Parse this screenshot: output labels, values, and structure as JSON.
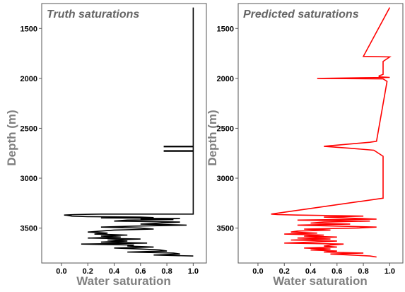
{
  "chart_data": [
    {
      "type": "line",
      "title": "Truth saturations",
      "xlabel": "Water saturation",
      "ylabel": "Depth (m)",
      "xlim": [
        -0.15,
        1.1
      ],
      "ylim": [
        3850,
        1250
      ],
      "y_inverted": true,
      "xticks": [
        "0.0",
        "0.2",
        "0.4",
        "0.6",
        "0.8",
        "1.0"
      ],
      "yticks": [
        "1500",
        "2000",
        "2500",
        "3000",
        "3500"
      ],
      "line_color": "#000000",
      "series": [
        {
          "depth": [
            1290,
            2680,
            2680,
            2685,
            2685,
            2725,
            2725,
            2730,
            2730,
            3360,
            3360,
            3365,
            3370,
            3372,
            3380,
            3385,
            3390,
            3395,
            3398,
            3400,
            3405,
            3410,
            3415,
            3420,
            3430,
            3440,
            3450,
            3460,
            3470,
            3480,
            3490,
            3500,
            3510,
            3520,
            3530,
            3540,
            3550,
            3560,
            3570,
            3580,
            3590,
            3600,
            3610,
            3620,
            3630,
            3640,
            3650,
            3660,
            3670,
            3680,
            3690,
            3700,
            3710,
            3720,
            3730,
            3740,
            3750,
            3760,
            3770,
            3780
          ],
          "saturation": [
            1.0,
            1.0,
            0.78,
            0.78,
            1.0,
            1.0,
            0.78,
            0.78,
            1.0,
            1.0,
            0.3,
            0.1,
            0.02,
            0.04,
            0.08,
            0.2,
            0.6,
            0.7,
            0.3,
            0.55,
            0.9,
            0.6,
            0.85,
            0.5,
            0.4,
            0.9,
            0.75,
            0.6,
            0.95,
            0.55,
            0.3,
            0.6,
            0.7,
            0.4,
            0.3,
            0.2,
            0.35,
            0.25,
            0.5,
            0.3,
            0.45,
            0.2,
            0.6,
            0.35,
            0.5,
            0.3,
            0.65,
            0.15,
            0.55,
            0.5,
            0.7,
            0.4,
            0.6,
            0.75,
            0.8,
            0.5,
            0.85,
            0.9,
            0.7,
            1.0
          ]
        }
      ]
    },
    {
      "type": "line",
      "title": "Predicted saturations",
      "xlabel": "Water saturation",
      "ylabel": "Depth (m)",
      "xlim": [
        -0.15,
        1.1
      ],
      "ylim": [
        3850,
        1250
      ],
      "y_inverted": true,
      "xticks": [
        "0.0",
        "0.2",
        "0.4",
        "0.6",
        "0.8",
        "1.0"
      ],
      "yticks": [
        "1500",
        "2000",
        "2500",
        "3000",
        "3500"
      ],
      "line_color": "#ff0000",
      "series": [
        {
          "depth": [
            1290,
            1780,
            1785,
            1830,
            1860,
            1920,
            1960,
            1975,
            1985,
            1990,
            2000,
            2005,
            2030,
            2630,
            2640,
            2680,
            2700,
            2720,
            2780,
            3020,
            3100,
            3200,
            3360,
            3365,
            3370,
            3375,
            3380,
            3390,
            3400,
            3410,
            3420,
            3430,
            3440,
            3450,
            3460,
            3470,
            3480,
            3490,
            3500,
            3510,
            3520,
            3530,
            3540,
            3550,
            3560,
            3570,
            3580,
            3590,
            3600,
            3610,
            3620,
            3630,
            3640,
            3650,
            3660,
            3670,
            3680,
            3690,
            3700,
            3710,
            3720,
            3730,
            3740,
            3750,
            3760,
            3770,
            3780,
            3790
          ],
          "saturation": [
            1.0,
            0.8,
            1.0,
            0.95,
            0.95,
            0.95,
            0.95,
            0.92,
            0.92,
            1.0,
            0.45,
            0.95,
            0.98,
            0.9,
            0.85,
            0.5,
            0.7,
            0.88,
            0.95,
            0.95,
            0.95,
            0.95,
            0.1,
            0.15,
            0.3,
            0.6,
            0.8,
            0.5,
            0.7,
            0.9,
            0.3,
            0.85,
            0.5,
            0.4,
            0.7,
            0.3,
            0.6,
            0.9,
            0.75,
            0.35,
            0.55,
            0.3,
            0.25,
            0.45,
            0.2,
            0.5,
            0.35,
            0.6,
            0.3,
            0.55,
            0.25,
            0.6,
            0.4,
            0.2,
            0.65,
            0.55,
            0.5,
            0.6,
            0.35,
            0.55,
            0.4,
            0.6,
            0.5,
            0.8,
            0.55,
            0.7,
            0.85,
            0.9
          ]
        }
      ]
    }
  ]
}
